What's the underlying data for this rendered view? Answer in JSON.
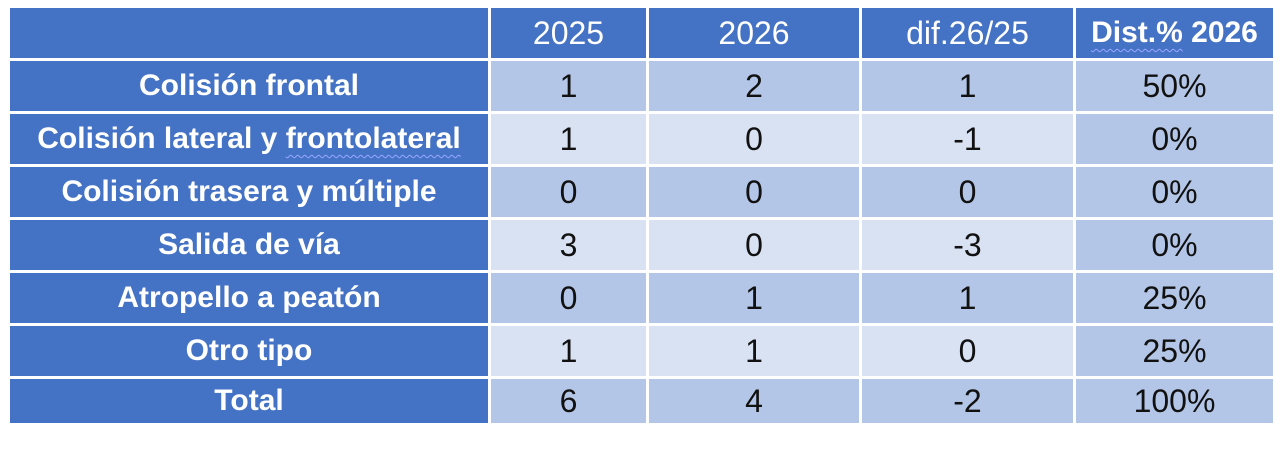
{
  "table": {
    "header": {
      "corner": "",
      "col_2025": "2025",
      "col_2026": "2026",
      "col_dif": "dif.26/25",
      "col_dist_prefix": "Dist.%",
      "col_dist_year": " 2026"
    },
    "rows": [
      {
        "label": "Colisión frontal",
        "v2025": "1",
        "v2026": "2",
        "dif": "1",
        "dist": "50%"
      },
      {
        "label_a": "Colisión lateral y ",
        "label_b": "frontolateral",
        "v2025": "1",
        "v2026": "0",
        "dif": "-1",
        "dist": "0%"
      },
      {
        "label": "Colisión trasera y múltiple",
        "v2025": "0",
        "v2026": "0",
        "dif": "0",
        "dist": "0%"
      },
      {
        "label": "Salida de vía",
        "v2025": "3",
        "v2026": "0",
        "dif": "-3",
        "dist": "0%"
      },
      {
        "label": "Atropello a peatón",
        "v2025": "0",
        "v2026": "1",
        "dif": "1",
        "dist": "25%"
      },
      {
        "label": "Otro tipo",
        "v2025": "1",
        "v2026": "1",
        "dif": "0",
        "dist": "25%"
      }
    ],
    "total": {
      "label": "Total",
      "v2025": "6",
      "v2026": "4",
      "dif": "-2",
      "dist": "100%"
    }
  },
  "colors": {
    "header_bg": "#4472c4",
    "row_dark": "#b4c6e7",
    "row_light": "#d9e2f3",
    "border": "#ffffff"
  }
}
